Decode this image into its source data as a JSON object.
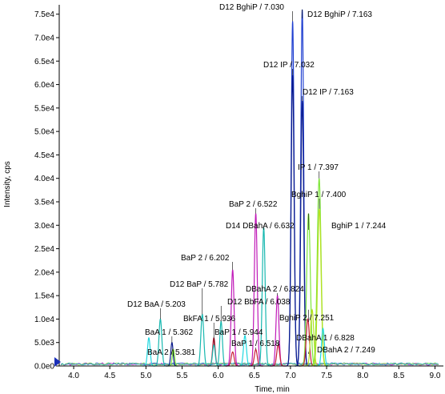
{
  "chart_data": {
    "type": "line",
    "xlabel": "Time, min",
    "ylabel": "Intensity, cps",
    "xlim": [
      3.8,
      9.05
    ],
    "ylim": [
      0,
      77000
    ],
    "x_ticks": [
      4.0,
      4.5,
      5.0,
      5.5,
      6.0,
      6.5,
      7.0,
      7.5,
      8.0,
      8.5,
      9.0
    ],
    "x_tick_labels": [
      "4.0",
      "4.5",
      "5.0",
      "5.5",
      "6.0",
      "6.5",
      "7.0",
      "7.5",
      "8.0",
      "8.5",
      "9.0"
    ],
    "y_ticks": [
      0,
      5000,
      10000,
      15000,
      20000,
      25000,
      30000,
      35000,
      40000,
      45000,
      50000,
      55000,
      60000,
      65000,
      70000,
      75000
    ],
    "y_tick_labels": [
      "0.0e0",
      "5.0e3",
      "1.0e4",
      "1.5e4",
      "2.0e4",
      "2.5e4",
      "3.0e4",
      "3.5e4",
      "4.0e4",
      "4.5e4",
      "5.0e4",
      "5.5e4",
      "6.0e4",
      "6.5e4",
      "7.0e4",
      "7.5e4"
    ],
    "grid": false,
    "colors": {
      "blue": "#1f3fd0",
      "navy": "#0a1a8a",
      "green": "#7ee63a",
      "teal": "#18b8b0",
      "magenta": "#c01ab8",
      "red": "#c81e3a",
      "lime": "#b8e020",
      "cyan": "#20d8e0"
    },
    "peaks": [
      {
        "x": 5.04,
        "y": 6000,
        "w": 0.018,
        "color": "cyan"
      },
      {
        "x": 5.2,
        "y": 10000,
        "w": 0.02,
        "color": "teal"
      },
      {
        "x": 5.36,
        "y": 5000,
        "w": 0.016,
        "color": "navy"
      },
      {
        "x": 5.38,
        "y": 3500,
        "w": 0.016,
        "color": "green"
      },
      {
        "x": 5.78,
        "y": 11000,
        "w": 0.02,
        "color": "teal"
      },
      {
        "x": 5.94,
        "y": 6000,
        "w": 0.018,
        "color": "red"
      },
      {
        "x": 5.94,
        "y": 4500,
        "w": 0.018,
        "color": "teal"
      },
      {
        "x": 6.04,
        "y": 9500,
        "w": 0.018,
        "color": "teal"
      },
      {
        "x": 6.2,
        "y": 20500,
        "w": 0.02,
        "color": "magenta"
      },
      {
        "x": 6.2,
        "y": 3000,
        "w": 0.02,
        "color": "red"
      },
      {
        "x": 6.37,
        "y": 6500,
        "w": 0.02,
        "color": "cyan"
      },
      {
        "x": 6.52,
        "y": 32500,
        "w": 0.02,
        "color": "magenta"
      },
      {
        "x": 6.52,
        "y": 3500,
        "w": 0.02,
        "color": "red"
      },
      {
        "x": 6.63,
        "y": 29500,
        "w": 0.02,
        "color": "teal"
      },
      {
        "x": 6.82,
        "y": 15000,
        "w": 0.02,
        "color": "magenta"
      },
      {
        "x": 6.83,
        "y": 4500,
        "w": 0.02,
        "color": "red"
      },
      {
        "x": 7.03,
        "y": 73500,
        "w": 0.02,
        "color": "blue"
      },
      {
        "x": 7.03,
        "y": 62000,
        "w": 0.02,
        "color": "navy"
      },
      {
        "x": 7.163,
        "y": 76000,
        "w": 0.02,
        "color": "blue"
      },
      {
        "x": 7.163,
        "y": 56500,
        "w": 0.02,
        "color": "navy"
      },
      {
        "x": 7.25,
        "y": 32500,
        "w": 0.025,
        "color": "green"
      },
      {
        "x": 7.24,
        "y": 10000,
        "w": 0.022,
        "color": "red"
      },
      {
        "x": 7.3,
        "y": 12000,
        "w": 0.022,
        "color": "lime"
      },
      {
        "x": 7.397,
        "y": 40000,
        "w": 0.026,
        "color": "green"
      },
      {
        "x": 7.4,
        "y": 33500,
        "w": 0.024,
        "color": "lime"
      },
      {
        "x": 7.45,
        "y": 8000,
        "w": 0.02,
        "color": "cyan"
      }
    ],
    "annotations": [
      {
        "label": "D12 BghiP  / 7.030",
        "x": 7.03,
        "y": 73500
      },
      {
        "label": "D12 BghiP  / 7.163",
        "x": 7.163,
        "y": 76000
      },
      {
        "label": "D12 IP  / 7.032",
        "x": 7.03,
        "y": 62000
      },
      {
        "label": "D12 IP  / 7.163",
        "x": 7.163,
        "y": 56500
      },
      {
        "label": "IP 1 / 7.397",
        "x": 7.397,
        "y": 40000
      },
      {
        "label": "BghiP 1 / 7.400",
        "x": 7.4,
        "y": 33500
      },
      {
        "label": "BghiP 1 / 7.244",
        "x": 7.25,
        "y": 32500
      },
      {
        "label": "BaP 2 / 6.522",
        "x": 6.52,
        "y": 32500
      },
      {
        "label": "D14 DBahA / 6.632",
        "x": 6.63,
        "y": 29500
      },
      {
        "label": "BaP 2 / 6.202",
        "x": 6.2,
        "y": 20500
      },
      {
        "label": "D12 BaP / 5.782",
        "x": 5.78,
        "y": 11000
      },
      {
        "label": "DBahA 2 / 6.824",
        "x": 6.82,
        "y": 15000
      },
      {
        "label": "D12 BbFA / 6.038",
        "x": 6.04,
        "y": 9500
      },
      {
        "label": "D12 BaA  / 5.203",
        "x": 5.2,
        "y": 10000
      },
      {
        "label": "BkFA 1 / 5.936",
        "x": 5.94,
        "y": 6000
      },
      {
        "label": "BghiP 2 / 7.251",
        "x": 7.25,
        "y": 12000
      },
      {
        "label": "BaA 1 / 5.362",
        "x": 5.36,
        "y": 5000
      },
      {
        "label": "BaP 1 / 5.944",
        "x": 5.94,
        "y": 4500
      },
      {
        "label": "DBahA 1 / 6.828",
        "x": 6.83,
        "y": 4500
      },
      {
        "label": "BaP 1 / 6.518",
        "x": 6.52,
        "y": 3500
      },
      {
        "label": "BaA 2 / 5.381",
        "x": 5.38,
        "y": 3500
      },
      {
        "label": "DBahA 2 / 7.249",
        "x": 7.249,
        "y": 3000
      }
    ]
  }
}
